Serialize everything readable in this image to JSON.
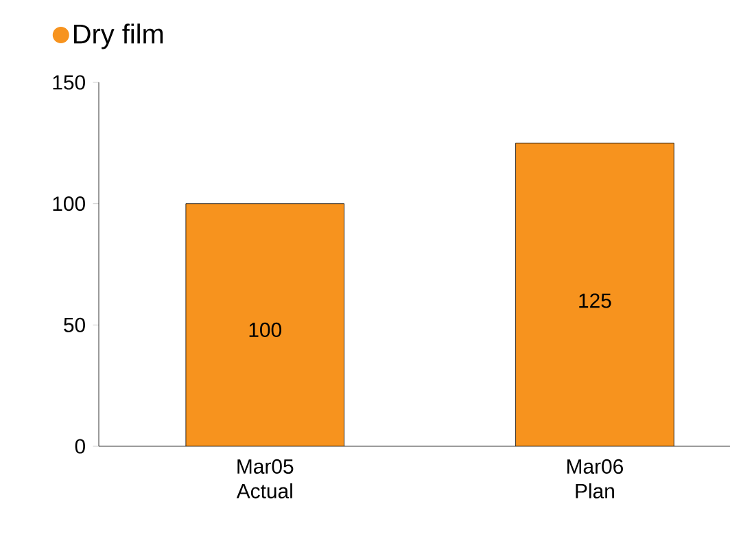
{
  "chart_data": {
    "type": "bar",
    "categories": [
      "Mar05 Actual",
      "Mar06 Plan"
    ],
    "series": [
      {
        "name": "Dry film",
        "color": "#f7931e",
        "values": [
          100,
          125
        ]
      }
    ],
    "ylim": [
      0,
      150
    ],
    "yticks": [
      0,
      50,
      100,
      150
    ],
    "data_labels": true,
    "legend": "top left",
    "grid": false
  }
}
